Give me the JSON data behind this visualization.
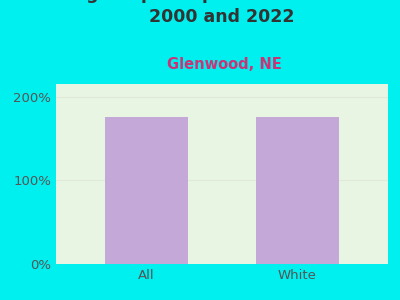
{
  "subtitle": "Glenwood, NE",
  "categories": [
    "All",
    "White"
  ],
  "values": [
    175,
    175
  ],
  "bar_color": "#c4a8d8",
  "background_color": "#00efef",
  "plot_bg_color": "#e8f5e2",
  "title_fontsize": 12.5,
  "subtitle_fontsize": 10.5,
  "subtitle_color": "#cc3377",
  "tick_label_fontsize": 9.5,
  "yticks": [
    0,
    100,
    200
  ],
  "ytick_labels": [
    "0%",
    "100%",
    "200%"
  ],
  "ylim": [
    0,
    215
  ],
  "title_color": "#333333",
  "tick_color": "#555555",
  "grid_color": "#e0e8d8"
}
